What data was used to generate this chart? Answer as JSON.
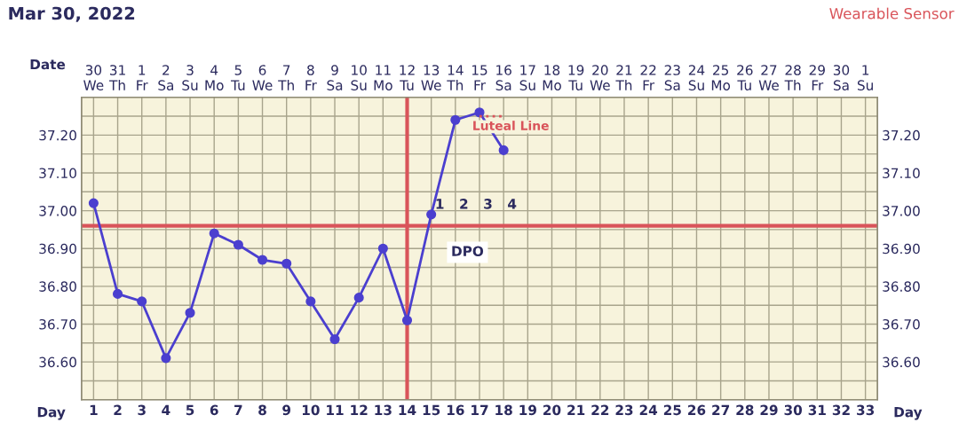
{
  "chart_data": {
    "type": "line",
    "title": "Mar 30, 2022",
    "subtitle": "Wearable Sensor",
    "xlabel": "Date",
    "x2label": "Day",
    "x": [
      "2022-03-30",
      "2022-03-31",
      "2022-04-01",
      "2022-04-02",
      "2022-04-03",
      "2022-04-04",
      "2022-04-05",
      "2022-04-06",
      "2022-04-07",
      "2022-04-08",
      "2022-04-09",
      "2022-04-10",
      "2022-04-11",
      "2022-04-12",
      "2022-04-13",
      "2022-04-14",
      "2022-04-15",
      "2022-04-16"
    ],
    "series": [
      {
        "color": "#4b3fcf",
        "values": [
          37.02,
          36.78,
          36.76,
          36.61,
          36.73,
          36.94,
          36.91,
          36.87,
          36.86,
          36.76,
          36.66,
          36.77,
          36.9,
          36.71,
          36.99,
          37.24,
          37.26,
          37.16
        ]
      },
      {
        "name": "Luteal Line",
        "type": "line",
        "line_style": "dotted",
        "marker": "none",
        "color": "#d9545a",
        "x": [
          "2022-04-15",
          "2022-04-16"
        ],
        "values": [
          37.25,
          37.25
        ]
      }
    ],
    "marker": "circle",
    "line_style": "solid",
    "grid": true,
    "legend": false,
    "xlim": [
      "2022-03-29T12:00",
      "2022-05-01T12:00"
    ],
    "xticks": [
      {
        "value": "2022-03-30",
        "label": "30\nWe"
      },
      {
        "value": "2022-03-31",
        "label": "31\nTh"
      },
      {
        "value": "2022-04-01",
        "label": "1\nFr"
      },
      {
        "value": "2022-04-02",
        "label": "2\nSa"
      },
      {
        "value": "2022-04-03",
        "label": "3\nSu"
      },
      {
        "value": "2022-04-04",
        "label": "4\nMo"
      },
      {
        "value": "2022-04-05",
        "label": "5\nTu"
      },
      {
        "value": "2022-04-06",
        "label": "6\nWe"
      },
      {
        "value": "2022-04-07",
        "label": "7\nTh"
      },
      {
        "value": "2022-04-08",
        "label": "8\nFr"
      },
      {
        "value": "2022-04-09",
        "label": "9\nSa"
      },
      {
        "value": "2022-04-10",
        "label": "10\nSu"
      },
      {
        "value": "2022-04-11",
        "label": "11\nMo"
      },
      {
        "value": "2022-04-12",
        "label": "12\nTu"
      },
      {
        "value": "2022-04-13",
        "label": "13\nWe"
      },
      {
        "value": "2022-04-14",
        "label": "14\nTh"
      },
      {
        "value": "2022-04-15",
        "label": "15\nFr"
      },
      {
        "value": "2022-04-16",
        "label": "16\nSa"
      },
      {
        "value": "2022-04-17",
        "label": "17\nSu"
      },
      {
        "value": "2022-04-18",
        "label": "18\nMo"
      },
      {
        "value": "2022-04-19",
        "label": "19\nTu"
      },
      {
        "value": "2022-04-20",
        "label": "20\nWe"
      },
      {
        "value": "2022-04-21",
        "label": "21\nTh"
      },
      {
        "value": "2022-04-22",
        "label": "22\nFr"
      },
      {
        "value": "2022-04-23",
        "label": "23\nSa"
      },
      {
        "value": "2022-04-24",
        "label": "24\nSu"
      },
      {
        "value": "2022-04-25",
        "label": "25\nMo"
      },
      {
        "value": "2022-04-26",
        "label": "26\nTu"
      },
      {
        "value": "2022-04-27",
        "label": "27\nWe"
      },
      {
        "value": "2022-04-28",
        "label": "28\nTh"
      },
      {
        "value": "2022-04-29",
        "label": "29\nFr"
      },
      {
        "value": "2022-04-30",
        "label": "30\nSa"
      },
      {
        "value": "2022-05-01",
        "label": "1\nSu"
      }
    ],
    "x2lim": [
      0.5,
      33.5
    ],
    "x2ticks": [
      1,
      2,
      3,
      4,
      5,
      6,
      7,
      8,
      9,
      10,
      11,
      12,
      13,
      14,
      15,
      16,
      17,
      18,
      19,
      20,
      21,
      22,
      23,
      24,
      25,
      26,
      27,
      28,
      29,
      30,
      31,
      32,
      33
    ],
    "ylim": [
      36.5,
      37.3
    ],
    "yticks": [
      {
        "value": 36.55,
        "label": null
      },
      {
        "value": 36.6,
        "label": "36.60"
      },
      {
        "value": 36.65,
        "label": null
      },
      {
        "value": 36.7,
        "label": "36.70"
      },
      {
        "value": 36.75,
        "label": null
      },
      {
        "value": 36.8,
        "label": "36.80"
      },
      {
        "value": 36.85,
        "label": null
      },
      {
        "value": 36.9,
        "label": "36.90"
      },
      {
        "value": 36.95,
        "label": null
      },
      {
        "value": 37.0,
        "label": "37.00"
      },
      {
        "value": 37.05,
        "label": null
      },
      {
        "value": 37.1,
        "label": "37.10"
      },
      {
        "value": 37.15,
        "label": null
      },
      {
        "value": 37.2,
        "label": "37.20"
      },
      {
        "value": 37.25,
        "label": null
      }
    ],
    "y2lim": [
      36.5,
      37.3
    ],
    "y2ticks": [
      {
        "value": 36.55,
        "label": null
      },
      {
        "value": 36.6,
        "label": "36.60"
      },
      {
        "value": 36.65,
        "label": null
      },
      {
        "value": 36.7,
        "label": "36.70"
      },
      {
        "value": 36.75,
        "label": null
      },
      {
        "value": 36.8,
        "label": "36.80"
      },
      {
        "value": 36.85,
        "label": null
      },
      {
        "value": 36.9,
        "label": "36.90"
      },
      {
        "value": 36.95,
        "label": null
      },
      {
        "value": 37.0,
        "label": "37.00"
      },
      {
        "value": 37.05,
        "label": null
      },
      {
        "value": 37.1,
        "label": "37.10"
      },
      {
        "value": 37.15,
        "label": null
      },
      {
        "value": 37.2,
        "label": "37.20"
      },
      {
        "value": 37.25,
        "label": null
      }
    ],
    "ref_lines": [
      {
        "axis": "y",
        "value": 36.96,
        "color": "#d9545a",
        "line_style": "solid"
      },
      {
        "axis": "x",
        "value": "2022-04-12",
        "color": "#d9545a",
        "line_style": "solid"
      }
    ],
    "annotations": [
      "1",
      "2",
      "3",
      "4",
      "DPO"
    ]
  }
}
